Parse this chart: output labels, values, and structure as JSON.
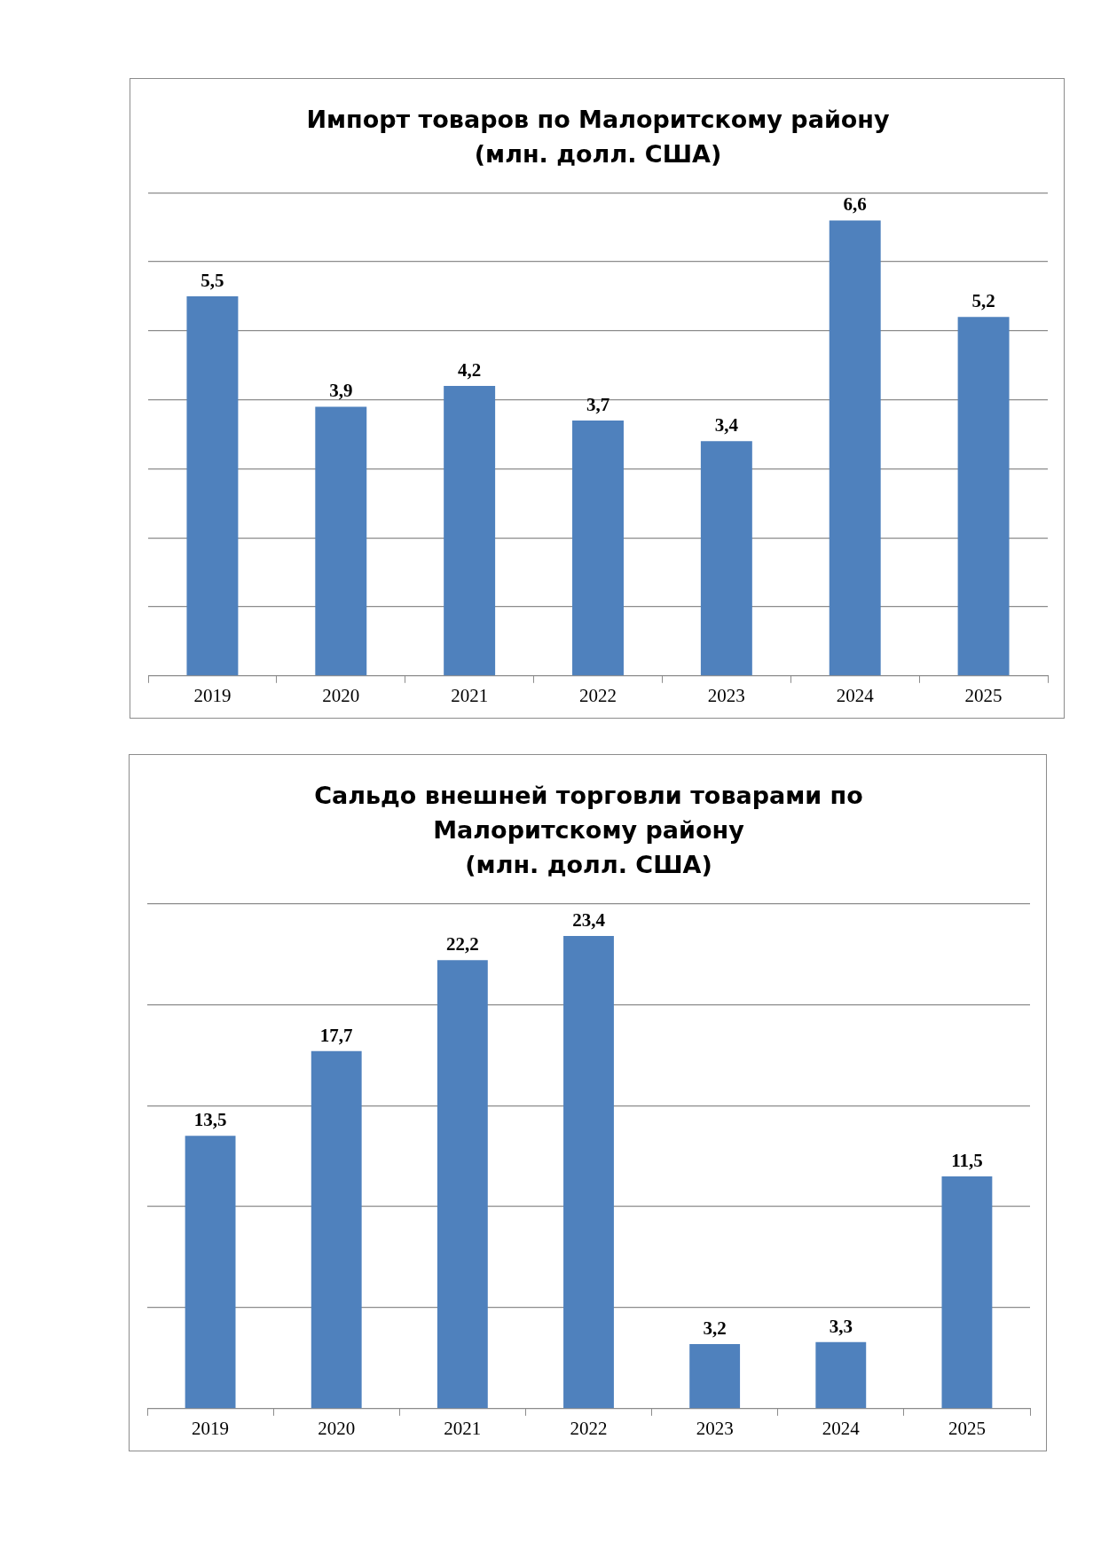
{
  "chart_data": [
    {
      "type": "bar",
      "title": "Импорт товаров по Малоритскому району\n(млн. долл. США)",
      "categories": [
        "2019",
        "2020",
        "2021",
        "2022",
        "2023",
        "2024",
        "2025"
      ],
      "values": [
        5.5,
        3.9,
        4.2,
        3.7,
        3.4,
        6.6,
        5.2
      ],
      "value_labels": [
        "5,5",
        "3,9",
        "4,2",
        "3,7",
        "3,4",
        "6,6",
        "5,2"
      ],
      "color": "#4f81bd",
      "grid": "y",
      "tick_labels": "x"
    },
    {
      "type": "bar",
      "title": "Сальдо внешней торговли товарами по\nМалоритскому району\n(млн. долл. США)",
      "categories": [
        "2019",
        "2020",
        "2021",
        "2022",
        "2023",
        "2024",
        "2025"
      ],
      "values": [
        13.5,
        17.7,
        22.2,
        23.4,
        3.2,
        3.3,
        11.5
      ],
      "value_labels": [
        "13,5",
        "17,7",
        "22,2",
        "23,4",
        "3,2",
        "3,3",
        "11,5"
      ],
      "color": "#4f81bd",
      "grid": "y",
      "tick_labels": "x"
    }
  ]
}
